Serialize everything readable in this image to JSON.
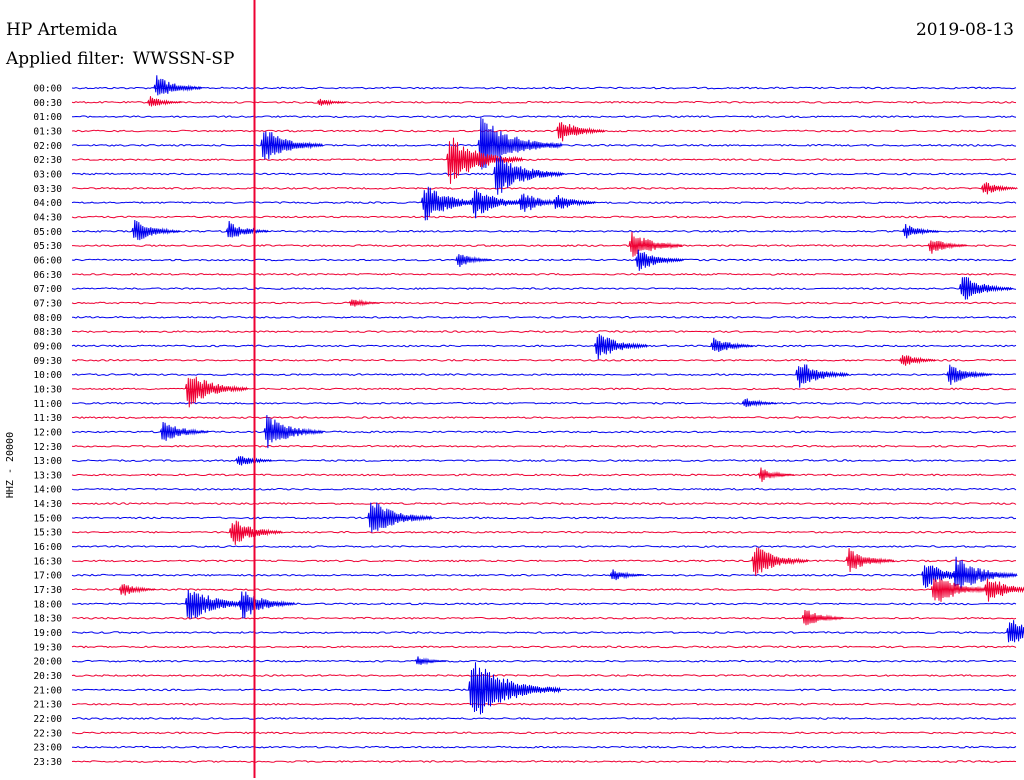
{
  "header": {
    "station": "HP Artemida",
    "date": "2019-08-13",
    "filter_label": "Applied filter:",
    "filter_value": "WWSSN-SP"
  },
  "channel_label": "HHZ - 20000",
  "colors": {
    "blue": "#0000ee",
    "red": "#ee0033",
    "marker": "#ee0033",
    "background": "#ffffff"
  },
  "chart_data": {
    "type": "line",
    "row_labels": [
      "00:00",
      "00:30",
      "01:00",
      "01:30",
      "02:00",
      "02:30",
      "03:00",
      "03:30",
      "04:00",
      "04:30",
      "05:00",
      "05:30",
      "06:00",
      "06:30",
      "07:00",
      "07:30",
      "08:00",
      "08:30",
      "09:00",
      "09:30",
      "10:00",
      "10:30",
      "11:00",
      "11:30",
      "12:00",
      "12:30",
      "13:00",
      "13:30",
      "14:00",
      "14:30",
      "15:00",
      "15:30",
      "16:00",
      "16:30",
      "17:00",
      "17:30",
      "18:00",
      "18:30",
      "19:00",
      "19:30",
      "20:00",
      "20:30",
      "21:00",
      "21:30",
      "22:00",
      "22:30",
      "23:00",
      "23:30"
    ],
    "row_colors": [
      "blue",
      "red"
    ],
    "minutes_per_row": 30,
    "events": [
      {
        "row": 0,
        "minute": 2.6,
        "amp": 1.0
      },
      {
        "row": 1,
        "minute": 2.4,
        "amp": 0.5
      },
      {
        "row": 1,
        "minute": 7.8,
        "amp": 0.35
      },
      {
        "row": 3,
        "minute": 15.4,
        "amp": 1.0
      },
      {
        "row": 4,
        "minute": 6.0,
        "amp": 1.5
      },
      {
        "row": 4,
        "minute": 12.9,
        "amp": 2.3
      },
      {
        "row": 5,
        "minute": 11.9,
        "amp": 2.0
      },
      {
        "row": 6,
        "minute": 13.4,
        "amp": 1.8
      },
      {
        "row": 7,
        "minute": 28.9,
        "amp": 0.6
      },
      {
        "row": 8,
        "minute": 11.1,
        "amp": 1.6
      },
      {
        "row": 8,
        "minute": 12.7,
        "amp": 1.3
      },
      {
        "row": 8,
        "minute": 14.2,
        "amp": 1.0
      },
      {
        "row": 8,
        "minute": 15.3,
        "amp": 0.8
      },
      {
        "row": 10,
        "minute": 1.9,
        "amp": 1.0
      },
      {
        "row": 10,
        "minute": 4.9,
        "amp": 0.8
      },
      {
        "row": 10,
        "minute": 26.4,
        "amp": 0.6
      },
      {
        "row": 11,
        "minute": 17.7,
        "amp": 1.2
      },
      {
        "row": 11,
        "minute": 27.2,
        "amp": 0.7
      },
      {
        "row": 12,
        "minute": 12.2,
        "amp": 0.6
      },
      {
        "row": 12,
        "minute": 17.9,
        "amp": 1.0
      },
      {
        "row": 14,
        "minute": 28.2,
        "amp": 1.2
      },
      {
        "row": 15,
        "minute": 8.8,
        "amp": 0.4
      },
      {
        "row": 18,
        "minute": 16.6,
        "amp": 1.2
      },
      {
        "row": 18,
        "minute": 20.3,
        "amp": 0.8
      },
      {
        "row": 19,
        "minute": 26.3,
        "amp": 0.6
      },
      {
        "row": 20,
        "minute": 23.0,
        "amp": 1.2
      },
      {
        "row": 20,
        "minute": 27.8,
        "amp": 0.9
      },
      {
        "row": 21,
        "minute": 3.6,
        "amp": 1.5
      },
      {
        "row": 22,
        "minute": 21.3,
        "amp": 0.5
      },
      {
        "row": 24,
        "minute": 2.8,
        "amp": 1.0
      },
      {
        "row": 24,
        "minute": 6.1,
        "amp": 1.4
      },
      {
        "row": 26,
        "minute": 5.2,
        "amp": 0.6
      },
      {
        "row": 27,
        "minute": 21.8,
        "amp": 0.6
      },
      {
        "row": 30,
        "minute": 9.4,
        "amp": 1.6
      },
      {
        "row": 31,
        "minute": 5.0,
        "amp": 1.2
      },
      {
        "row": 33,
        "minute": 21.6,
        "amp": 1.3
      },
      {
        "row": 33,
        "minute": 24.6,
        "amp": 1.0
      },
      {
        "row": 34,
        "minute": 17.1,
        "amp": 0.5
      },
      {
        "row": 34,
        "minute": 27.0,
        "amp": 1.2
      },
      {
        "row": 34,
        "minute": 28.0,
        "amp": 1.6
      },
      {
        "row": 35,
        "minute": 1.5,
        "amp": 0.6
      },
      {
        "row": 35,
        "minute": 27.3,
        "amp": 1.4
      },
      {
        "row": 35,
        "minute": 29.0,
        "amp": 1.2
      },
      {
        "row": 36,
        "minute": 3.6,
        "amp": 1.6
      },
      {
        "row": 36,
        "minute": 5.3,
        "amp": 1.3
      },
      {
        "row": 37,
        "minute": 23.2,
        "amp": 0.8
      },
      {
        "row": 38,
        "minute": 29.7,
        "amp": 1.2
      },
      {
        "row": 40,
        "minute": 10.9,
        "amp": 0.4
      },
      {
        "row": 42,
        "minute": 12.6,
        "amp": 2.6
      }
    ],
    "marker_minute": 5.8
  }
}
